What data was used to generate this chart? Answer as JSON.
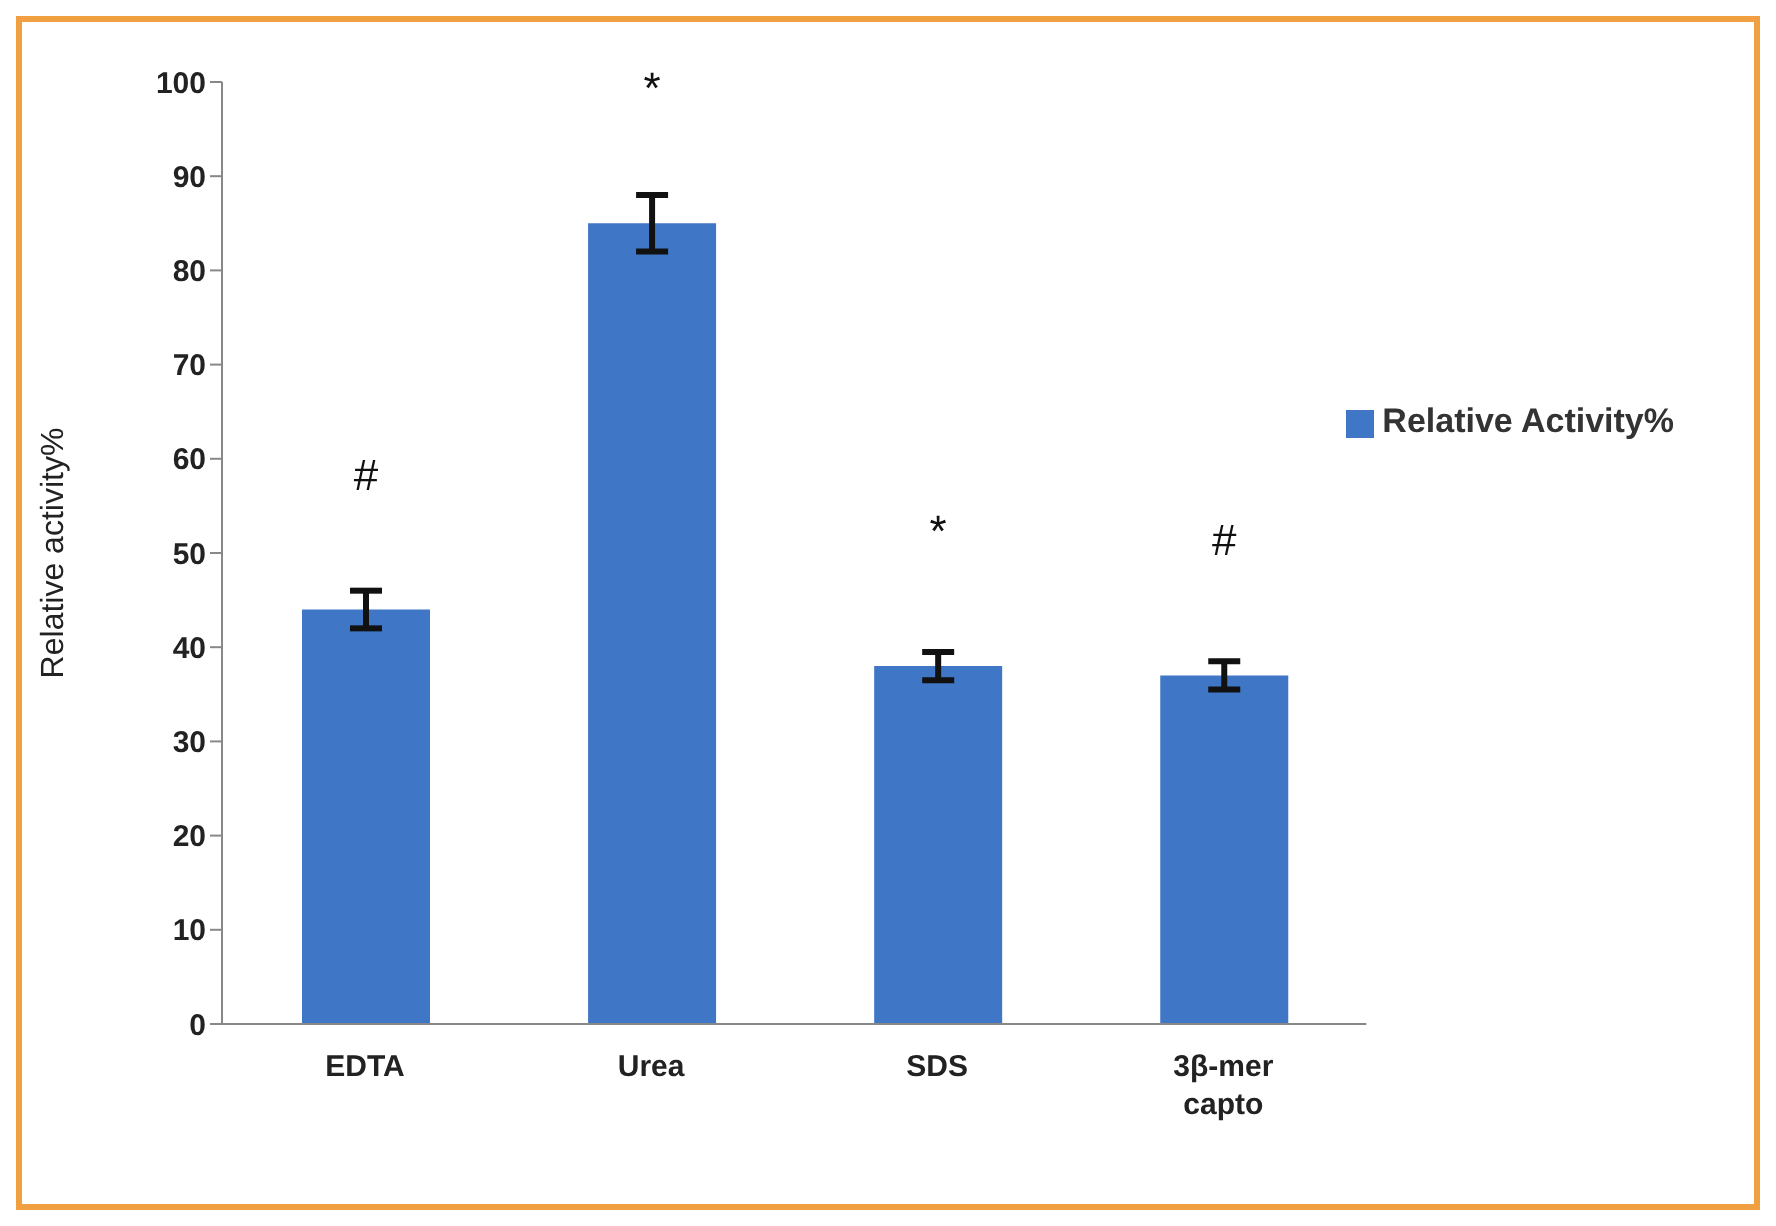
{
  "chart_data": {
    "type": "bar",
    "ylabel": "Relative activity%",
    "categories": [
      "EDTA",
      "Urea",
      "SDS",
      "3β-mer capto"
    ],
    "series": [
      {
        "name": "Relative Activity%",
        "color": "#3f76c6",
        "values": [
          44,
          85,
          38,
          37
        ],
        "errors": [
          2,
          3,
          1.5,
          1.5
        ]
      }
    ],
    "ylim": [
      0,
      100
    ],
    "yticks": [
      0,
      10,
      20,
      30,
      40,
      50,
      60,
      70,
      80,
      90,
      100
    ],
    "grid": false,
    "legend": "right",
    "annotations": [
      "#",
      "*",
      "*",
      "#"
    ]
  }
}
